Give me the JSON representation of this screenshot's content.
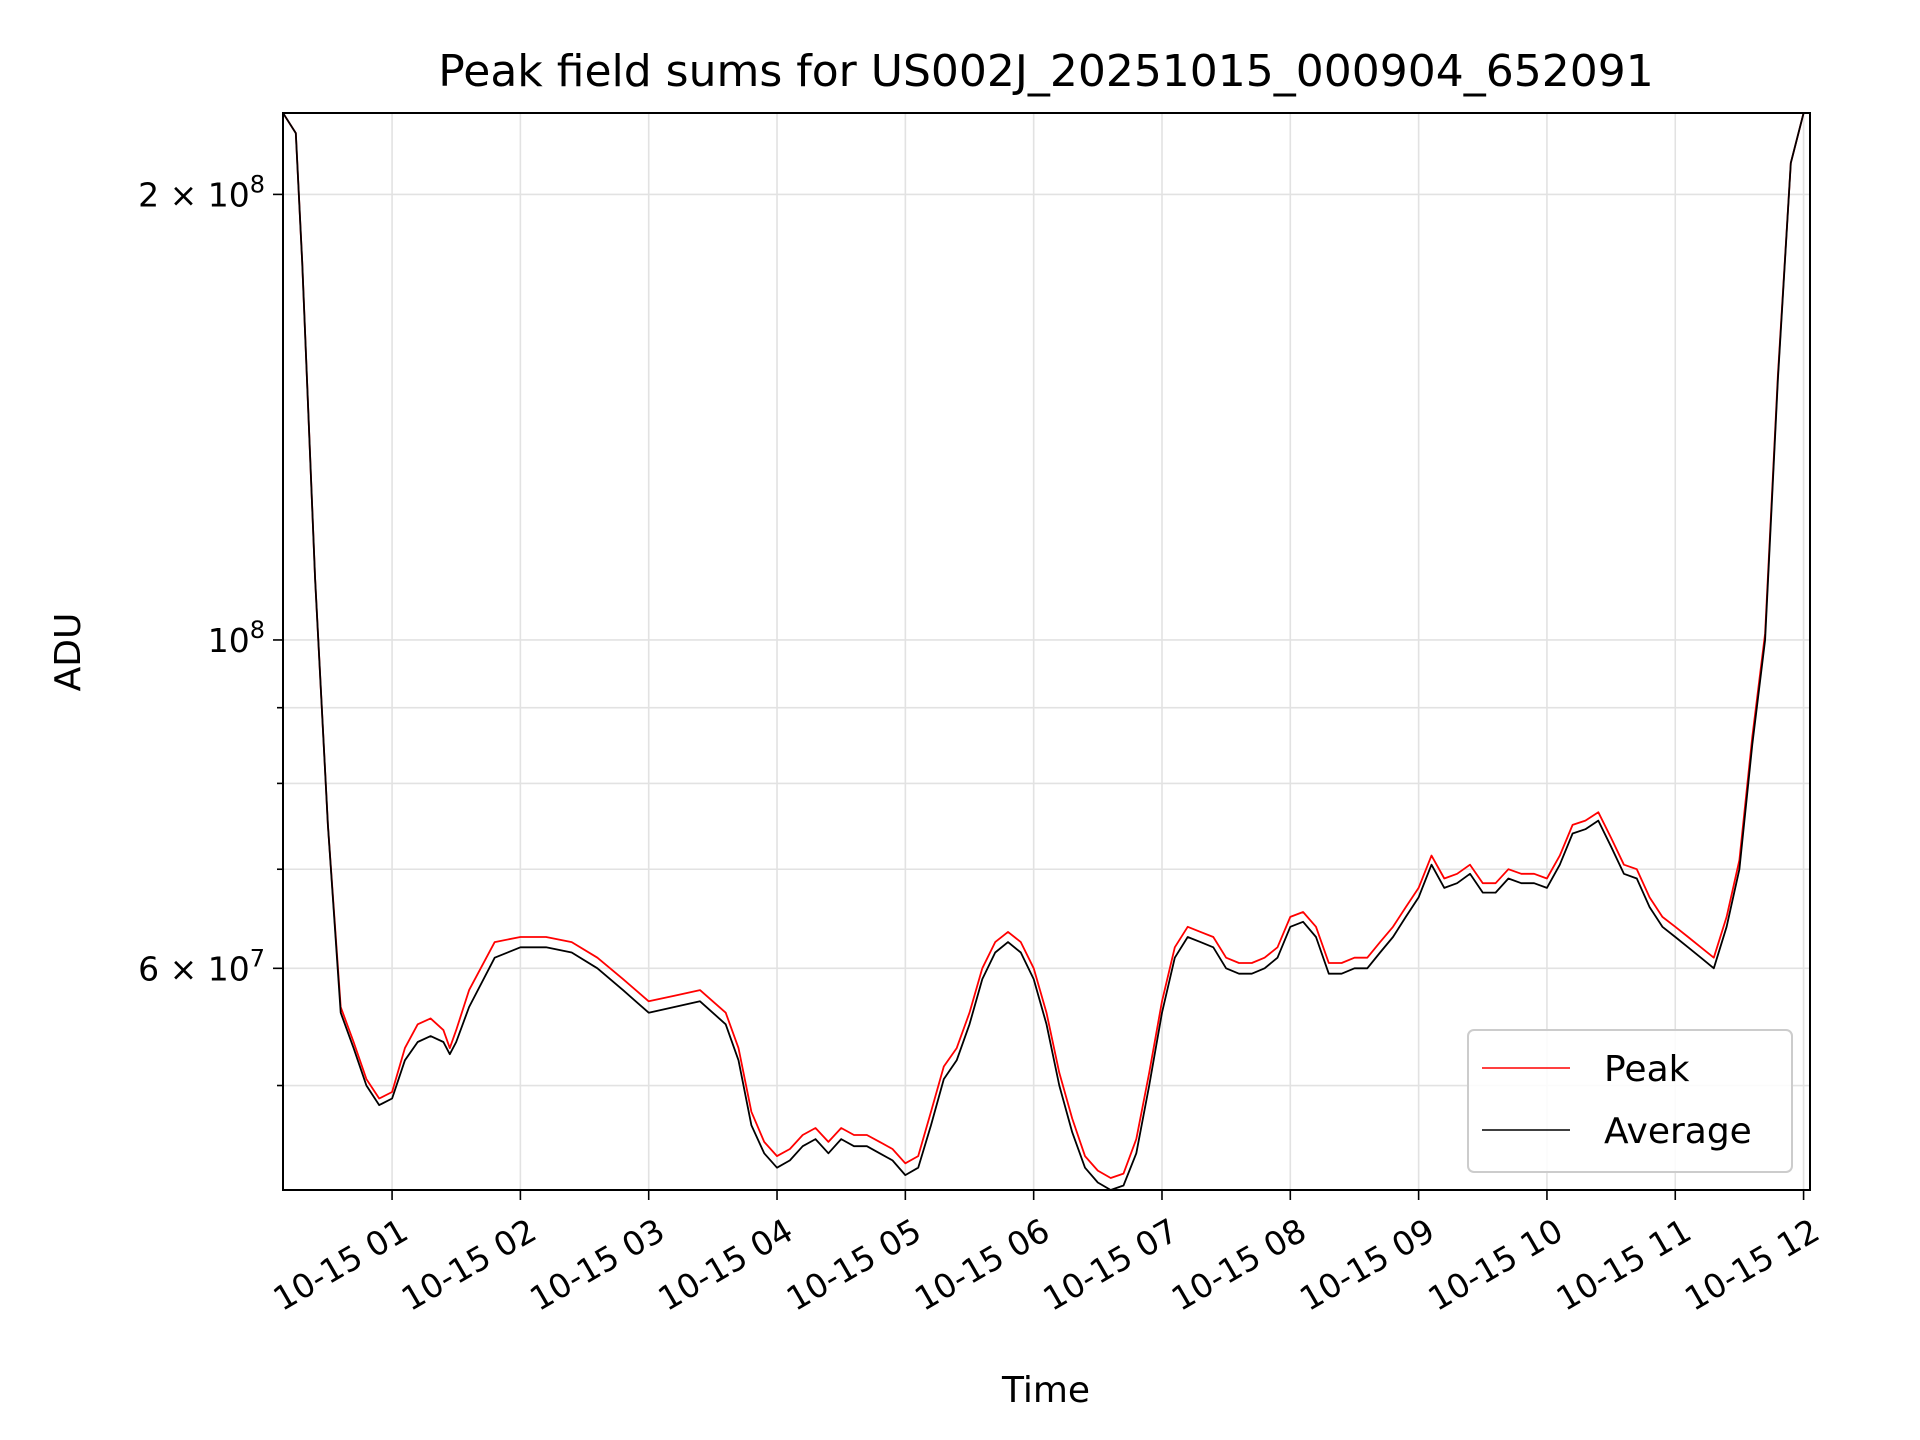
{
  "chart_data": {
    "type": "line",
    "title": "Peak field sums for US002J_20251015_000904_652091",
    "xlabel": "Time",
    "ylabel": "ADU",
    "yscale": "log",
    "x_unit": "hours after 2025-10-15 00:00",
    "xlim": [
      0.15,
      12.05
    ],
    "ylim": [
      42500000,
      227000000
    ],
    "grid": true,
    "legend_position": "lower-right",
    "x_ticks": [
      {
        "value": 1,
        "label": "10-15 01"
      },
      {
        "value": 2,
        "label": "10-15 02"
      },
      {
        "value": 3,
        "label": "10-15 03"
      },
      {
        "value": 4,
        "label": "10-15 04"
      },
      {
        "value": 5,
        "label": "10-15 05"
      },
      {
        "value": 6,
        "label": "10-15 06"
      },
      {
        "value": 7,
        "label": "10-15 07"
      },
      {
        "value": 8,
        "label": "10-15 08"
      },
      {
        "value": 9,
        "label": "10-15 09"
      },
      {
        "value": 10,
        "label": "10-15 10"
      },
      {
        "value": 11,
        "label": "10-15 11"
      },
      {
        "value": 12,
        "label": "10-15 12"
      }
    ],
    "y_major_ticks": [
      {
        "value": 200000000,
        "base": "2 × 10",
        "exp": "8"
      },
      {
        "value": 100000000,
        "base": "10",
        "exp": "8"
      },
      {
        "value": 60000000,
        "base": "6 × 10",
        "exp": "7"
      }
    ],
    "y_minor_ticks": [
      50000000,
      70000000,
      80000000,
      90000000
    ],
    "x_values": [
      0.15,
      0.25,
      0.3,
      0.4,
      0.5,
      0.6,
      0.7,
      0.8,
      0.9,
      1.0,
      1.1,
      1.2,
      1.3,
      1.4,
      1.45,
      1.5,
      1.6,
      1.8,
      2.0,
      2.2,
      2.4,
      2.6,
      2.8,
      3.0,
      3.2,
      3.4,
      3.6,
      3.7,
      3.8,
      3.9,
      4.0,
      4.1,
      4.2,
      4.3,
      4.4,
      4.5,
      4.6,
      4.7,
      4.8,
      4.9,
      5.0,
      5.1,
      5.2,
      5.3,
      5.4,
      5.5,
      5.6,
      5.7,
      5.8,
      5.9,
      6.0,
      6.1,
      6.2,
      6.3,
      6.4,
      6.5,
      6.6,
      6.7,
      6.8,
      6.9,
      7.0,
      7.1,
      7.2,
      7.3,
      7.4,
      7.5,
      7.6,
      7.7,
      7.8,
      7.9,
      8.0,
      8.1,
      8.2,
      8.3,
      8.4,
      8.5,
      8.6,
      8.7,
      8.8,
      8.9,
      9.0,
      9.1,
      9.2,
      9.3,
      9.4,
      9.5,
      9.6,
      9.7,
      9.8,
      9.9,
      10.0,
      10.1,
      10.2,
      10.3,
      10.4,
      10.5,
      10.6,
      10.7,
      10.8,
      10.9,
      11.0,
      11.1,
      11.2,
      11.3,
      11.4,
      11.5,
      11.6,
      11.7,
      11.8,
      11.9,
      12.0,
      12.05
    ],
    "series": [
      {
        "name": "Average",
        "color": "#000000",
        "values": [
          227000000,
          220000000,
          180000000,
          110000000,
          75000000,
          56000000,
          53000000,
          50000000,
          48500000,
          49000000,
          52000000,
          53500000,
          54000000,
          53500000,
          52500000,
          53500000,
          56500000,
          61000000,
          62000000,
          62000000,
          61500000,
          60000000,
          58000000,
          56000000,
          56500000,
          57000000,
          55000000,
          52000000,
          47000000,
          45000000,
          44000000,
          44500000,
          45500000,
          46000000,
          45000000,
          46000000,
          45500000,
          45500000,
          45000000,
          44500000,
          43500000,
          44000000,
          47000000,
          50500000,
          52000000,
          55000000,
          59000000,
          61500000,
          62500000,
          61500000,
          59000000,
          55000000,
          50000000,
          46500000,
          44000000,
          43000000,
          42500000,
          42800000,
          45000000,
          50000000,
          56000000,
          61000000,
          63000000,
          62500000,
          62000000,
          60000000,
          59500000,
          59500000,
          60000000,
          61000000,
          64000000,
          64500000,
          63000000,
          59500000,
          59500000,
          60000000,
          60000000,
          61500000,
          63000000,
          65000000,
          67000000,
          70500000,
          68000000,
          68500000,
          69500000,
          67500000,
          67500000,
          69000000,
          68500000,
          68500000,
          68000000,
          70500000,
          74000000,
          74500000,
          75500000,
          72500000,
          69500000,
          69000000,
          66000000,
          64000000,
          63000000,
          62000000,
          61000000,
          60000000,
          64000000,
          70000000,
          85000000,
          100000000,
          150000000,
          210000000,
          227000000,
          227000000
        ]
      },
      {
        "name": "Peak",
        "color": "#ff0000",
        "values": [
          227000000,
          220000000,
          180000000,
          110000000,
          75000000,
          56500000,
          53500000,
          50500000,
          49000000,
          49500000,
          53000000,
          55000000,
          55500000,
          54500000,
          53000000,
          54500000,
          58000000,
          62500000,
          63000000,
          63000000,
          62500000,
          61000000,
          59000000,
          57000000,
          57500000,
          58000000,
          56000000,
          53000000,
          48000000,
          45800000,
          44800000,
          45300000,
          46300000,
          46800000,
          45800000,
          46800000,
          46300000,
          46300000,
          45800000,
          45300000,
          44300000,
          44800000,
          48000000,
          51500000,
          53000000,
          56000000,
          60000000,
          62500000,
          63500000,
          62500000,
          60000000,
          56000000,
          51000000,
          47500000,
          44800000,
          43800000,
          43300000,
          43600000,
          46000000,
          51000000,
          57000000,
          62000000,
          64000000,
          63500000,
          63000000,
          61000000,
          60500000,
          60500000,
          61000000,
          62000000,
          65000000,
          65500000,
          64000000,
          60500000,
          60500000,
          61000000,
          61000000,
          62500000,
          64000000,
          66000000,
          68000000,
          71500000,
          69000000,
          69500000,
          70500000,
          68500000,
          68500000,
          70000000,
          69500000,
          69500000,
          69000000,
          71500000,
          75000000,
          75500000,
          76500000,
          73500000,
          70500000,
          70000000,
          67000000,
          65000000,
          64000000,
          63000000,
          62000000,
          61000000,
          65000000,
          71000000,
          86000000,
          101000000,
          151000000,
          210000000,
          227000000,
          227000000
        ]
      }
    ]
  }
}
